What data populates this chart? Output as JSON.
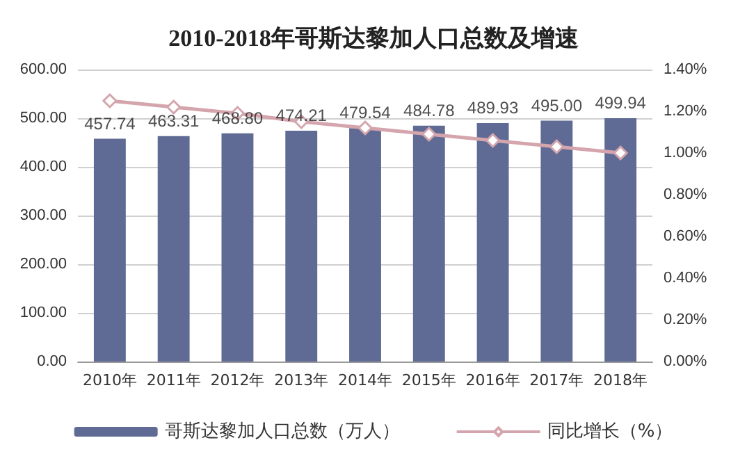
{
  "chart_data": {
    "type": "bar",
    "title": "2010-2018年哥斯达黎加人口总数及增速",
    "categories": [
      "2010年",
      "2011年",
      "2012年",
      "2013年",
      "2014年",
      "2015年",
      "2016年",
      "2017年",
      "2018年"
    ],
    "series": [
      {
        "name": "哥斯达黎加人口总数（万人）",
        "color": "#5f6b94",
        "values": [
          457.74,
          463.31,
          468.8,
          474.21,
          479.54,
          484.78,
          489.93,
          495,
          499.94
        ],
        "value_labels": [
          "457.74",
          "463.31",
          "468.80",
          "474.21",
          "479.54",
          "484.78",
          "489.93",
          "495.00",
          "499.94"
        ]
      },
      {
        "name": "同比增长（%）",
        "type": "line",
        "axis": "y2",
        "color": "#d4a5ad",
        "marker": "diamond",
        "values": [
          1.25,
          1.22,
          1.19,
          1.15,
          1.12,
          1.09,
          1.06,
          1.03,
          1.0
        ]
      }
    ],
    "ylim": [
      0,
      600
    ],
    "yticks": [
      {
        "value": 0,
        "label": "0.00"
      },
      {
        "value": 100,
        "label": "100.00"
      },
      {
        "value": 200,
        "label": "200.00"
      },
      {
        "value": 300,
        "label": "300.00"
      },
      {
        "value": 400,
        "label": "400.00"
      },
      {
        "value": 500,
        "label": "500.00"
      },
      {
        "value": 600,
        "label": "600.00"
      }
    ],
    "y2lim": [
      0,
      1.4
    ],
    "y2ticks": [
      {
        "value": 0,
        "label": "0.00%"
      },
      {
        "value": 0.2,
        "label": "0.20%"
      },
      {
        "value": 0.4,
        "label": "0.40%"
      },
      {
        "value": 0.6,
        "label": "0.60%"
      },
      {
        "value": 0.8,
        "label": "0.80%"
      },
      {
        "value": 1.0,
        "label": "1.00%"
      },
      {
        "value": 1.2,
        "label": "1.20%"
      },
      {
        "value": 1.4,
        "label": "1.40%"
      }
    ],
    "grid": "y",
    "legend": "bottom"
  }
}
